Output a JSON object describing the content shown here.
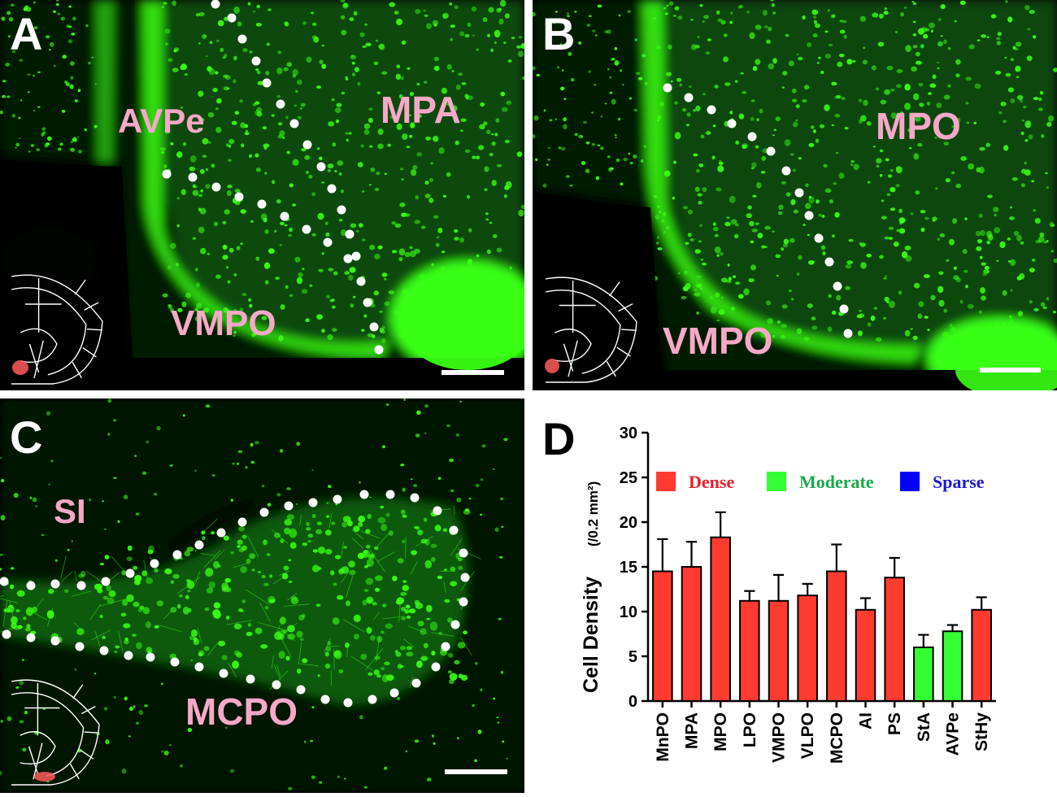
{
  "panels": {
    "a": {
      "letter": "A",
      "labels": {
        "avpe": "AVPe",
        "mpa": "MPA",
        "vmpo": "VMPO"
      }
    },
    "b": {
      "letter": "B",
      "labels": {
        "mpo": "MPO",
        "vmpo": "VMPO"
      }
    },
    "c": {
      "letter": "C",
      "labels": {
        "si": "SI",
        "mcpo": "MCPO"
      }
    },
    "d": {
      "letter": "D"
    }
  },
  "colors": {
    "label_pink": "#f7a8c8",
    "fluorescence": "#39ff14",
    "dense": "#ff3b30",
    "moderate": "#33ff33",
    "sparse": "#0000ff"
  },
  "chart_data": {
    "type": "bar",
    "ylabel": "Cell Density",
    "ylabel_unit": "(/0.2 mm²)",
    "ylim": [
      0,
      30
    ],
    "yticks": [
      0,
      5,
      10,
      15,
      20,
      25,
      30
    ],
    "categories": [
      "MnPO",
      "MPA",
      "MPO",
      "LPO",
      "VMPO",
      "VLPO",
      "MCPO",
      "AI",
      "PS",
      "StA",
      "AVPe",
      "StHy"
    ],
    "values": [
      14.5,
      15.0,
      18.3,
      11.2,
      11.2,
      11.8,
      14.5,
      10.2,
      13.8,
      6.0,
      7.8,
      10.2
    ],
    "errors": [
      3.6,
      2.8,
      2.8,
      1.1,
      2.9,
      1.3,
      3.0,
      1.3,
      2.2,
      1.4,
      0.7,
      1.4
    ],
    "density_class": [
      "dense",
      "dense",
      "dense",
      "dense",
      "dense",
      "dense",
      "dense",
      "dense",
      "dense",
      "moderate",
      "moderate",
      "dense"
    ],
    "legend": [
      {
        "key": "dense",
        "label": "Dense",
        "color": "#ff3b30",
        "text_color": "#e8202a"
      },
      {
        "key": "moderate",
        "label": "Moderate",
        "color": "#33ff33",
        "text_color": "#1aaa4a"
      },
      {
        "key": "sparse",
        "label": "Sparse",
        "color": "#0000ff",
        "text_color": "#1a1acc"
      }
    ],
    "legend_placement": "top"
  }
}
